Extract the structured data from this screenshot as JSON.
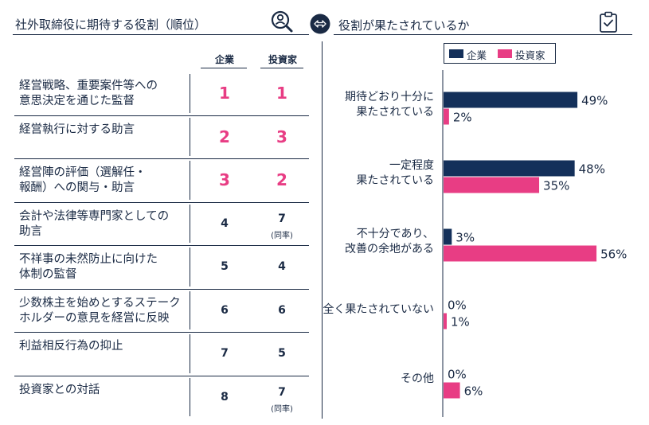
{
  "left_panel": {
    "title": "社外取締役に期待する役割（順位）",
    "col_company": "企業",
    "col_investor": "投資家",
    "rows": [
      {
        "label": "経営戦略、重要案件等への\n意思決定を通じた監督",
        "company": "1",
        "investor": "1",
        "company_note": "",
        "investor_note": "",
        "highlight": true
      },
      {
        "label": "経営執行に対する助言",
        "company": "2",
        "investor": "3",
        "company_note": "",
        "investor_note": "",
        "highlight": true
      },
      {
        "label": "経営陣の評価（選解任・\n報酬）への関与・助言",
        "company": "3",
        "investor": "2",
        "company_note": "",
        "investor_note": "",
        "highlight": true
      },
      {
        "label": "会計や法律等専門家としての\n助言",
        "company": "4",
        "investor": "7",
        "company_note": "",
        "investor_note": "(同率)",
        "highlight": false
      },
      {
        "label": "不祥事の未然防止に向けた\n体制の監督",
        "company": "5",
        "investor": "4",
        "company_note": "",
        "investor_note": "",
        "highlight": false
      },
      {
        "label": "少数株主を始めとするステーク\nホルダーの意見を経営に反映",
        "company": "6",
        "investor": "6",
        "company_note": "",
        "investor_note": "",
        "highlight": false
      },
      {
        "label": "利益相反行為の抑止",
        "company": "7",
        "investor": "5",
        "company_note": "",
        "investor_note": "",
        "highlight": false
      },
      {
        "label": "投資家との対話",
        "company": "8",
        "investor": "7",
        "company_note": "",
        "investor_note": "(同率)",
        "highlight": false
      }
    ]
  },
  "icons": {
    "search_person": "search-person-icon",
    "arrow": "double-arrow-icon",
    "clipboard": "clipboard-check-icon"
  },
  "colors": {
    "navy": "#1a2a44",
    "navy_bar": "#14305a",
    "pink": "#e83d84"
  },
  "chart_data": {
    "type": "bar",
    "orientation": "horizontal",
    "title": "役割が果たされているか",
    "categories": [
      "期待どおり十分に\n果たされている",
      "一定程度\n果たされている",
      "不十分であり、\n改善の余地がある",
      "全く果たされていない",
      "その他"
    ],
    "series": [
      {
        "name": "企業",
        "values": [
          49,
          48,
          3,
          0,
          0
        ],
        "color": "#14305a"
      },
      {
        "name": "投資家",
        "values": [
          2,
          35,
          56,
          1,
          6
        ],
        "color": "#e83d84"
      }
    ],
    "value_suffix": "%",
    "legend_placement": "top",
    "grid": false
  }
}
